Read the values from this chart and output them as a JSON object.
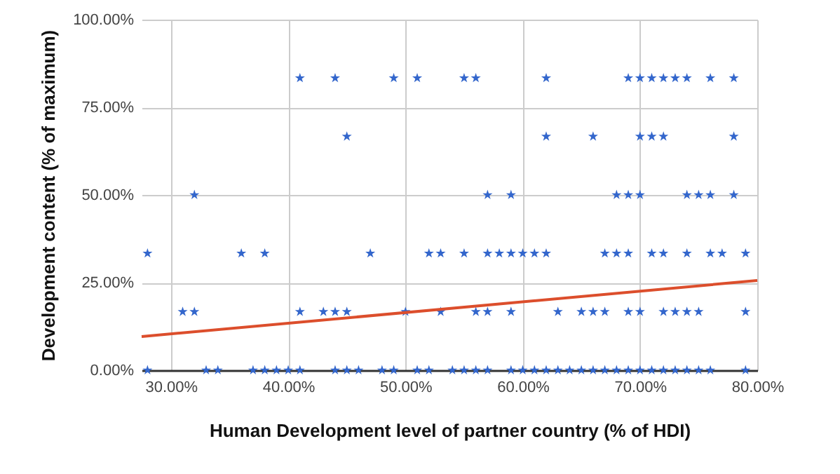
{
  "chart_data": {
    "type": "scatter",
    "xlabel": "Human Development level of partner country (% of HDI)",
    "ylabel": "Development content (% of maximum)",
    "xlim": [
      27.5,
      80
    ],
    "ylim": [
      0,
      100
    ],
    "xticks": [
      {
        "value": 30,
        "label": "30.00%"
      },
      {
        "value": 40,
        "label": "40.00%"
      },
      {
        "value": 50,
        "label": "50.00%"
      },
      {
        "value": 60,
        "label": "60.00%"
      },
      {
        "value": 70,
        "label": "70.00%"
      },
      {
        "value": 80,
        "label": "80.00%"
      }
    ],
    "yticks": [
      {
        "value": 0,
        "label": "0.00%"
      },
      {
        "value": 25,
        "label": "25.00%"
      },
      {
        "value": 50,
        "label": "50.00%"
      },
      {
        "value": 75,
        "label": "75.00%"
      },
      {
        "value": 100,
        "label": "100.00%"
      }
    ],
    "grid": true,
    "marker": "star",
    "series": [
      {
        "color": "#3366cc",
        "x": [
          41,
          44,
          49,
          51,
          55,
          56,
          62,
          69,
          70,
          71,
          72,
          73,
          74,
          76,
          78,
          45,
          62,
          66,
          70,
          71,
          72,
          78,
          32,
          57,
          59,
          68,
          69,
          70,
          74,
          75,
          76,
          78,
          28,
          36,
          38,
          47,
          52,
          53,
          55,
          57,
          58,
          59,
          60,
          61,
          62,
          67,
          68,
          69,
          71,
          72,
          74,
          76,
          77,
          79,
          31,
          32,
          41,
          43,
          44,
          45,
          50,
          53,
          56,
          57,
          59,
          63,
          65,
          66,
          67,
          69,
          70,
          72,
          73,
          74,
          75,
          79,
          28,
          33,
          34,
          37,
          38,
          39,
          40,
          41,
          44,
          45,
          46,
          48,
          49,
          51,
          52,
          54,
          55,
          56,
          57,
          59,
          60,
          61,
          62,
          63,
          64,
          65,
          66,
          67,
          68,
          69,
          70,
          71,
          72,
          73,
          74,
          75,
          76,
          79
        ],
        "values": [
          83.33,
          83.33,
          83.33,
          83.33,
          83.33,
          83.33,
          83.33,
          83.33,
          83.33,
          83.33,
          83.33,
          83.33,
          83.33,
          83.33,
          83.33,
          66.67,
          66.67,
          66.67,
          66.67,
          66.67,
          66.67,
          66.67,
          50,
          50,
          50,
          50,
          50,
          50,
          50,
          50,
          50,
          50,
          33.33,
          33.33,
          33.33,
          33.33,
          33.33,
          33.33,
          33.33,
          33.33,
          33.33,
          33.33,
          33.33,
          33.33,
          33.33,
          33.33,
          33.33,
          33.33,
          33.33,
          33.33,
          33.33,
          33.33,
          33.33,
          33.33,
          16.67,
          16.67,
          16.67,
          16.67,
          16.67,
          16.67,
          16.67,
          16.67,
          16.67,
          16.67,
          16.67,
          16.67,
          16.67,
          16.67,
          16.67,
          16.67,
          16.67,
          16.67,
          16.67,
          16.67,
          16.67,
          16.67,
          0,
          0,
          0,
          0,
          0,
          0,
          0,
          0,
          0,
          0,
          0,
          0,
          0,
          0,
          0,
          0,
          0,
          0,
          0,
          0,
          0,
          0,
          0,
          0,
          0,
          0,
          0,
          0,
          0,
          0,
          0,
          0,
          0,
          0,
          0,
          0,
          0,
          0
        ]
      },
      {
        "type": "line",
        "marker": "none",
        "color": "#dc4e2c",
        "x": [
          27.5,
          80
        ],
        "values": [
          9.6,
          25.6
        ]
      }
    ]
  }
}
